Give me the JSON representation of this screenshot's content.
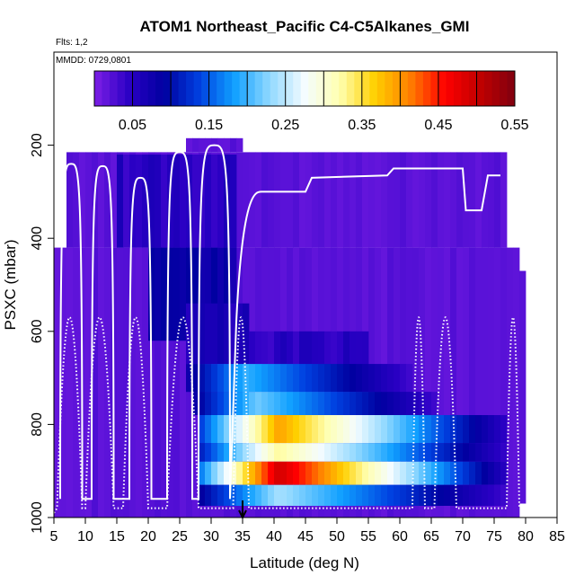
{
  "chart_data": {
    "type": "heatmap",
    "title": "ATOM1 Northeast_Pacific C4-C5Alkanes_GMI",
    "flights_text": "Flts: 1,2",
    "mmdd_text": "MMDD: 0729,0801",
    "xlabel": "Latitude (deg N)",
    "ylabel": "PSXC (mbar)",
    "xlim": [
      5,
      85
    ],
    "ylim": [
      1000,
      0
    ],
    "x_ticks": [
      5,
      10,
      15,
      20,
      25,
      30,
      35,
      40,
      45,
      50,
      55,
      60,
      65,
      70,
      75,
      80,
      85
    ],
    "x_tick_labels": [
      "5",
      "10",
      "15",
      "20",
      "25",
      "30",
      "35",
      "40",
      "45",
      "50",
      "55",
      "60",
      "65",
      "70",
      "75",
      "80",
      "85"
    ],
    "y_ticks": [
      200,
      400,
      600,
      800,
      1000
    ],
    "y_tick_labels": [
      "200",
      "400",
      "600",
      "800",
      "1000"
    ],
    "colorbar": {
      "range": [
        0,
        0.55
      ],
      "tick_values": [
        0.05,
        0.15,
        0.25,
        0.35,
        0.45,
        0.55
      ],
      "tick_labels": [
        "0.05",
        "0.15",
        "0.25",
        "0.35",
        "0.45",
        "0.55"
      ],
      "stops": [
        "#7d1fe6",
        "#2a00c4",
        "#0000a0",
        "#0040e0",
        "#10a0ff",
        "#90d8ff",
        "#f4fcff",
        "#ffffb0",
        "#ffd000",
        "#ff8000",
        "#ff0000",
        "#c00000",
        "#800010"
      ]
    },
    "marker_latitude": 35,
    "background_rows": [
      {
        "lat_range": [
          5,
          79
        ],
        "p_range": [
          420,
          1000
        ],
        "value": 0.02
      },
      {
        "lat_range": [
          7,
          77
        ],
        "p_range": [
          215,
          420
        ],
        "value": 0.02
      },
      {
        "lat_range": [
          26,
          35
        ],
        "p_range": [
          185,
          215
        ],
        "value": 0.02
      },
      {
        "lat_range": [
          79,
          80
        ],
        "p_range": [
          470,
          970
        ],
        "value": 0.02
      }
    ],
    "regions": [
      {
        "lat_range": [
          15,
          34
        ],
        "p_range": [
          220,
          420
        ],
        "value": 0.05
      },
      {
        "lat_range": [
          20,
          34
        ],
        "p_range": [
          420,
          620
        ],
        "value": 0.08
      },
      {
        "lat_range": [
          26,
          36
        ],
        "p_range": [
          540,
          670
        ],
        "value": 0.06
      },
      {
        "lat_range": [
          35,
          55
        ],
        "p_range": [
          600,
          680
        ],
        "value": 0.05
      },
      {
        "lat_range": [
          26,
          62
        ],
        "p_range": [
          670,
          730
        ],
        "value": 0.18
      },
      {
        "lat_range": [
          27,
          66
        ],
        "p_range": [
          730,
          780
        ],
        "value": 0.2
      },
      {
        "lat_range": [
          28,
          77
        ],
        "p_range": [
          780,
          840
        ],
        "value": 0.36
      },
      {
        "lat_range": [
          28,
          77
        ],
        "p_range": [
          840,
          880
        ],
        "value": 0.3
      },
      {
        "lat_range": [
          28,
          77
        ],
        "p_range": [
          880,
          930
        ],
        "value": 0.45
      },
      {
        "lat_range": [
          28,
          77
        ],
        "p_range": [
          930,
          975
        ],
        "value": 0.22
      }
    ],
    "series": [
      {
        "name": "Flight 1 track",
        "style": "dotted"
      },
      {
        "name": "Flight 2 track",
        "style": "solid"
      }
    ]
  }
}
